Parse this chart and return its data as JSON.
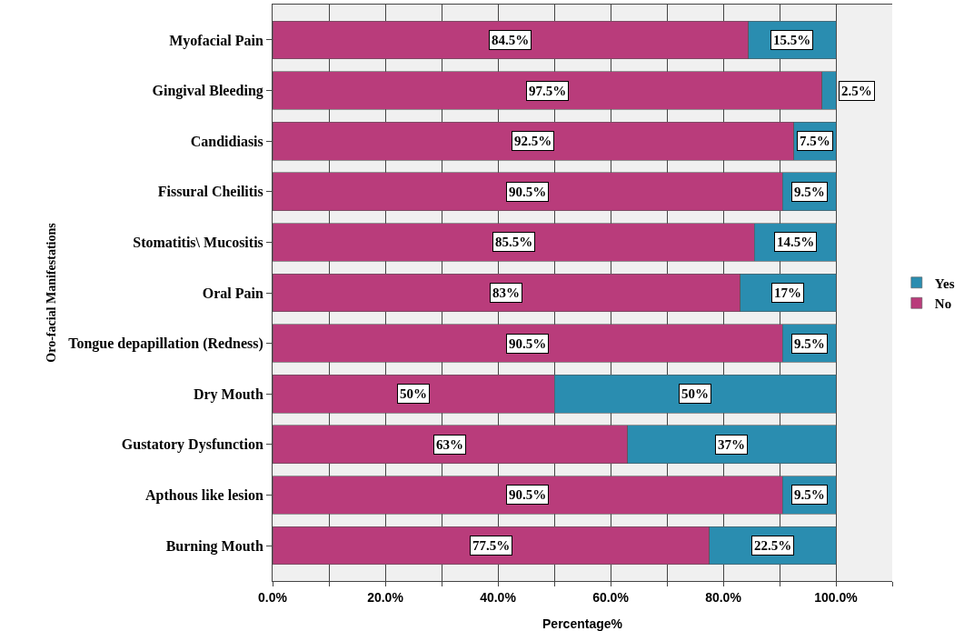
{
  "chart_data": {
    "type": "bar",
    "orientation": "horizontal",
    "stacked": true,
    "xlabel": "Percentage%",
    "ylabel": "Oro-facial Manifestations",
    "categories": [
      "Myofacial Pain",
      "Gingival Bleeding",
      "Candidiasis",
      "Fissural Cheilitis",
      "Stomatitis\\ Mucositis",
      "Oral Pain",
      "Tongue depapillation (Redness)",
      "Dry Mouth",
      "Gustatory Dysfunction",
      "Apthous like lesion",
      "Burning Mouth"
    ],
    "series": [
      {
        "name": "No",
        "color": "#b93c7b",
        "values": [
          84.5,
          97.5,
          92.5,
          90.5,
          85.5,
          83,
          90.5,
          50,
          63,
          90.5,
          77.5
        ],
        "value_labels": [
          "84.5%",
          "97.5%",
          "92.5%",
          "90.5%",
          "85.5%",
          "83%",
          "90.5%",
          "50%",
          "63%",
          "90.5%",
          "77.5%"
        ]
      },
      {
        "name": "Yes",
        "color": "#2a8db0",
        "values": [
          15.5,
          2.5,
          7.5,
          9.5,
          14.5,
          17,
          9.5,
          50,
          37,
          9.5,
          22.5
        ],
        "value_labels": [
          "15.5%",
          "2.5%",
          "7.5%",
          "9.5%",
          "14.5%",
          "17%",
          "9.5%",
          "50%",
          "37%",
          "9.5%",
          "22.5%"
        ]
      }
    ],
    "xlim": [
      0,
      110
    ],
    "xticks": [
      {
        "value": 0,
        "label": "0.0%"
      },
      {
        "value": 10,
        "label": null
      },
      {
        "value": 20,
        "label": "20.0%"
      },
      {
        "value": 30,
        "label": null
      },
      {
        "value": 40,
        "label": "40.0%"
      },
      {
        "value": 50,
        "label": null
      },
      {
        "value": 60,
        "label": "60.0%"
      },
      {
        "value": 70,
        "label": null
      },
      {
        "value": 80,
        "label": "80.0%"
      },
      {
        "value": 90,
        "label": null
      },
      {
        "value": 100,
        "label": "100.0%"
      },
      {
        "value": 110,
        "label": null
      }
    ],
    "grid": "x",
    "legend": "right"
  }
}
